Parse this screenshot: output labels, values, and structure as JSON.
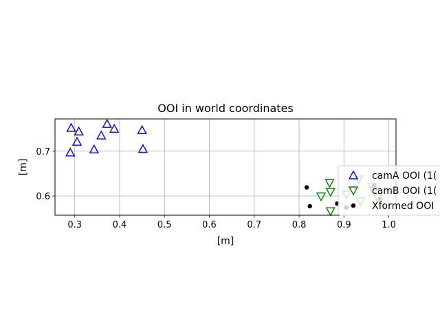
{
  "chart_data": {
    "type": "scatter",
    "title": "OOI in world coordinates",
    "xlabel": "[m]",
    "ylabel": "[m]",
    "xlim": [
      0.256,
      1.016
    ],
    "ylim": [
      0.557,
      0.772
    ],
    "xticks": [
      0.3,
      0.4,
      0.5,
      0.6,
      0.7,
      0.8,
      0.9,
      1.0
    ],
    "xtick_labels": [
      "0.3",
      "0.4",
      "0.5",
      "0.6",
      "0.7",
      "0.8",
      "0.9",
      "1.0"
    ],
    "yticks": [
      0.6,
      0.7
    ],
    "ytick_labels": [
      "0.6",
      "0.7"
    ],
    "grid": true,
    "legend_position": "right",
    "series": [
      {
        "name": "camA OOI (1(",
        "marker": "triangle-up",
        "color": "#0000ff",
        "x": [
          0.292,
          0.309,
          0.305,
          0.29,
          0.343,
          0.359,
          0.372,
          0.388,
          0.45,
          0.452
        ],
        "y": [
          0.752,
          0.744,
          0.721,
          0.697,
          0.704,
          0.735,
          0.761,
          0.75,
          0.747,
          0.705
        ]
      },
      {
        "name": "camB OOI (1(",
        "marker": "triangle-down",
        "color": "#008000",
        "x": [
          0.868,
          0.87,
          0.849,
          0.87,
          0.905,
          0.937,
          0.933,
          0.963,
          0.966,
          0.975
        ],
        "y": [
          0.629,
          0.609,
          0.599,
          0.566,
          0.603,
          0.588,
          0.637,
          0.62,
          0.612,
          0.596
        ]
      },
      {
        "name": "Xformed OOI",
        "marker": "circle",
        "color": "#000000",
        "x": [
          0.817,
          0.824,
          0.885,
          0.905,
          0.919,
          0.98,
          0.967
        ],
        "y": [
          0.619,
          0.577,
          0.583,
          0.574,
          0.577,
          0.594,
          0.623
        ]
      }
    ]
  }
}
